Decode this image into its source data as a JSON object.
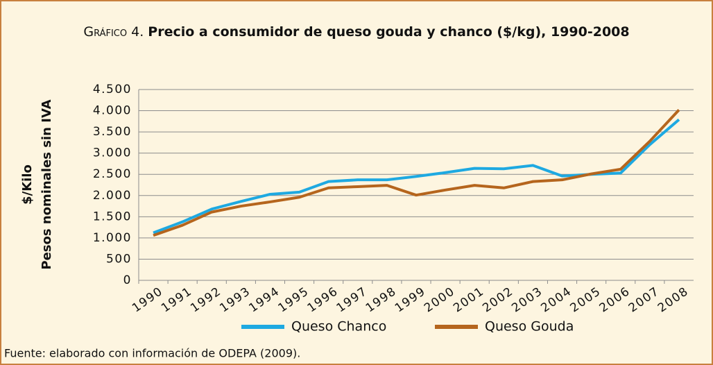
{
  "chart_data": {
    "type": "line",
    "title_label": "Gráfico 4.",
    "title": "Precio a consumidor de queso gouda y chanco ($/kg), 1990-2008",
    "ylabel": [
      "$/Kilo",
      "Pesos nominales sin IVA"
    ],
    "note": "Fuente: elaborado con información de ODEPA (2009).",
    "categories": [
      "1990",
      "1991",
      "1992",
      "1993",
      "1994",
      "1995",
      "1996",
      "1997",
      "1998",
      "1999",
      "2000",
      "2001",
      "2002",
      "2003",
      "2004",
      "2005",
      "2006",
      "2007",
      "2008"
    ],
    "series": [
      {
        "name": "Queso Chanco",
        "color": "#1ea9e1",
        "values": [
          1120,
          1380,
          1680,
          1860,
          2030,
          2080,
          2330,
          2370,
          2370,
          2450,
          2540,
          2640,
          2630,
          2710,
          2460,
          2500,
          2530,
          3200,
          3790
        ]
      },
      {
        "name": "Queso Gouda",
        "color": "#b5651d",
        "values": [
          1060,
          1300,
          1610,
          1750,
          1850,
          1960,
          2180,
          2210,
          2240,
          2010,
          2130,
          2240,
          2180,
          2330,
          2370,
          2510,
          2620,
          3280,
          4020
        ]
      }
    ],
    "ylim": [
      0,
      4500
    ],
    "yticks": [
      0,
      500,
      {
        "value": 1000,
        "label": "1.000"
      },
      {
        "value": 1500,
        "label": "1.500"
      },
      {
        "value": 2000,
        "label": "2.000"
      },
      {
        "value": 2500,
        "label": "2.500"
      },
      {
        "value": 3000,
        "label": "3.000"
      },
      {
        "value": 3500,
        "label": "3.500"
      },
      {
        "value": 4000,
        "label": "4.000"
      },
      {
        "value": 4500,
        "label": "4.500"
      }
    ],
    "grid": true,
    "legend": "bottom"
  }
}
